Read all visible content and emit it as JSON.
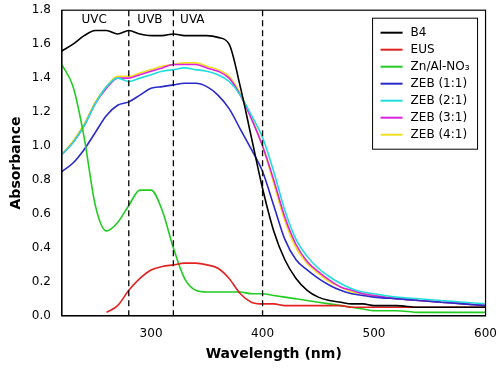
{
  "chart_data": {
    "type": "line",
    "x_label": "Wavelength (nm)",
    "y_label": "Absorbance",
    "xlim": [
      220,
      600
    ],
    "xticks": [
      300,
      400,
      500,
      600
    ],
    "ylim": [
      0,
      1.8
    ],
    "yticks": [
      {
        "value": 0,
        "label": "0.0"
      },
      {
        "value": 0.2,
        "label": "0.2"
      },
      {
        "value": 0.4,
        "label": "0.4"
      },
      {
        "value": 0.6,
        "label": "0.6"
      },
      {
        "value": 0.8,
        "label": "0.8"
      },
      {
        "value": 1.0,
        "label": "1.0"
      },
      {
        "value": 1.2,
        "label": "1.2"
      },
      {
        "value": 1.4,
        "label": "1.4"
      },
      {
        "value": 1.6,
        "label": "1.6"
      },
      {
        "value": 1.8,
        "label": "1.8"
      }
    ],
    "grid": false,
    "legend": "upper right",
    "vlines": [
      280,
      320,
      400
    ],
    "annotations": [
      {
        "text": "UVC",
        "x": 249
      },
      {
        "text": "UVB",
        "x": 299
      },
      {
        "text": "UVA",
        "x": 337
      }
    ],
    "x": [
      220,
      230,
      240,
      250,
      260,
      270,
      280,
      290,
      300,
      310,
      320,
      330,
      340,
      350,
      360,
      370,
      380,
      390,
      400,
      410,
      420,
      430,
      440,
      450,
      460,
      470,
      480,
      490,
      500,
      520,
      540,
      560,
      580,
      600
    ],
    "series": [
      {
        "name": "B4",
        "color": "#000000",
        "values": [
          1.56,
          1.6,
          1.65,
          1.68,
          1.68,
          1.66,
          1.68,
          1.66,
          1.65,
          1.65,
          1.66,
          1.65,
          1.65,
          1.65,
          1.64,
          1.6,
          1.35,
          1.05,
          0.75,
          0.5,
          0.33,
          0.22,
          0.15,
          0.11,
          0.09,
          0.08,
          0.07,
          0.07,
          0.06,
          0.06,
          0.05,
          0.05,
          0.05,
          0.05
        ]
      },
      {
        "name": "EUS",
        "color": "#e32222",
        "values": [
          null,
          null,
          null,
          null,
          0.02,
          0.06,
          0.15,
          0.22,
          0.27,
          0.29,
          0.3,
          0.31,
          0.31,
          0.3,
          0.28,
          0.22,
          0.13,
          0.08,
          0.07,
          0.07,
          0.06,
          0.06,
          0.06,
          0.06,
          0.06,
          0.06,
          0.05,
          0.05,
          0.05,
          0.05,
          0.05,
          0.05,
          0.05,
          0.05
        ]
      },
      {
        "name": "Zn/Al-NO₃",
        "color": "#22cc22",
        "values": [
          1.48,
          1.35,
          1.05,
          0.65,
          0.5,
          0.55,
          0.65,
          0.74,
          0.74,
          0.62,
          0.4,
          0.22,
          0.15,
          0.14,
          0.14,
          0.14,
          0.14,
          0.13,
          0.13,
          0.12,
          0.11,
          0.1,
          0.09,
          0.08,
          0.07,
          0.06,
          0.05,
          0.04,
          0.03,
          0.03,
          0.02,
          0.02,
          0.02,
          0.02
        ]
      },
      {
        "name": "ZEB (1:1)",
        "color": "#2a2ac8",
        "values": [
          0.85,
          0.9,
          0.98,
          1.08,
          1.18,
          1.24,
          1.26,
          1.3,
          1.34,
          1.35,
          1.36,
          1.37,
          1.37,
          1.35,
          1.3,
          1.22,
          1.1,
          0.98,
          0.85,
          0.65,
          0.45,
          0.33,
          0.27,
          0.22,
          0.18,
          0.15,
          0.13,
          0.12,
          0.11,
          0.1,
          0.09,
          0.08,
          0.07,
          0.06
        ]
      },
      {
        "name": "ZEB (2:1)",
        "color": "#22dddd",
        "values": [
          0.95,
          1.02,
          1.12,
          1.25,
          1.35,
          1.4,
          1.38,
          1.4,
          1.42,
          1.44,
          1.45,
          1.46,
          1.45,
          1.44,
          1.42,
          1.38,
          1.3,
          1.18,
          1.05,
          0.85,
          0.62,
          0.45,
          0.35,
          0.28,
          0.23,
          0.19,
          0.16,
          0.14,
          0.13,
          0.11,
          0.1,
          0.09,
          0.08,
          0.07
        ]
      },
      {
        "name": "ZEB (3:1)",
        "color": "#dd22dd",
        "values": [
          0.95,
          1.02,
          1.12,
          1.25,
          1.34,
          1.4,
          1.4,
          1.42,
          1.44,
          1.46,
          1.48,
          1.48,
          1.48,
          1.46,
          1.44,
          1.4,
          1.3,
          1.16,
          1.0,
          0.8,
          0.58,
          0.42,
          0.32,
          0.26,
          0.21,
          0.17,
          0.15,
          0.13,
          0.12,
          0.1,
          0.09,
          0.08,
          0.07,
          0.06
        ]
      },
      {
        "name": "ZEB (4:1)",
        "color": "#f0e020",
        "values": [
          0.95,
          1.03,
          1.13,
          1.26,
          1.35,
          1.41,
          1.41,
          1.43,
          1.45,
          1.47,
          1.48,
          1.49,
          1.49,
          1.47,
          1.45,
          1.41,
          1.31,
          1.17,
          1.0,
          0.78,
          0.56,
          0.4,
          0.31,
          0.25,
          0.2,
          0.17,
          0.14,
          0.13,
          0.12,
          0.1,
          0.09,
          0.08,
          0.07,
          0.06
        ]
      }
    ]
  }
}
